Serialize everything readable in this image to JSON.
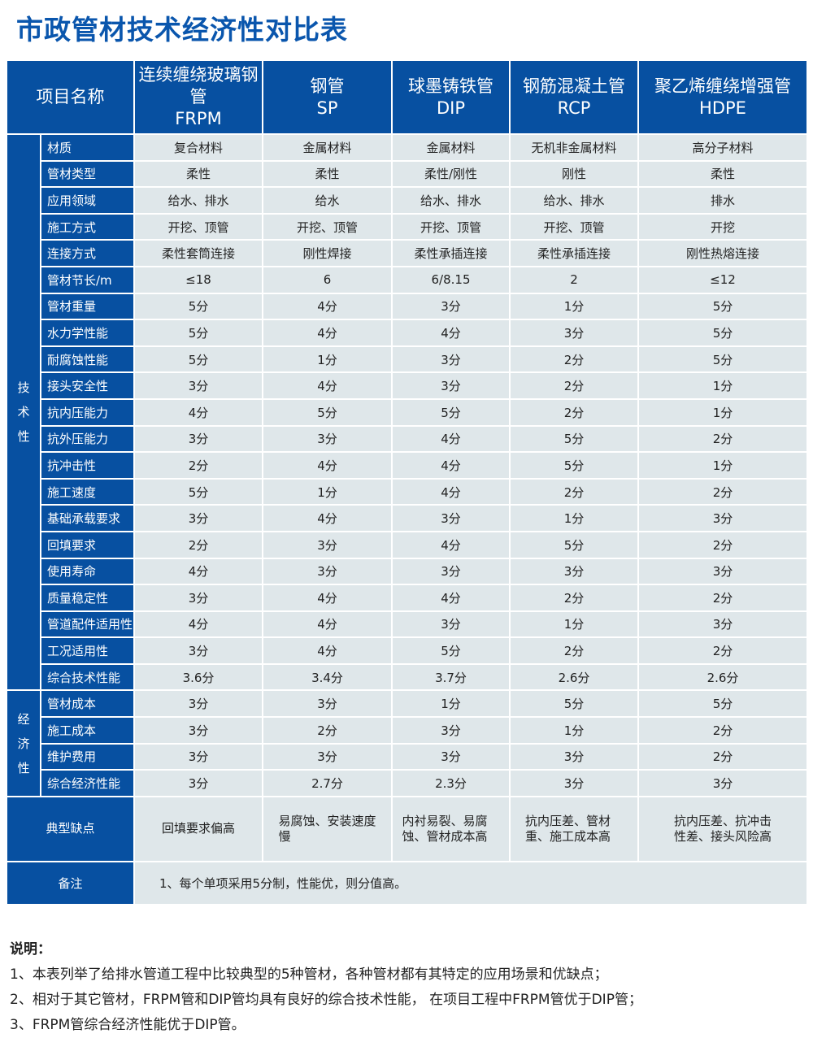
{
  "title": "市政管材技术经济性对比表",
  "header": {
    "item": "项目名称",
    "columns": [
      {
        "cn": "连续缠绕玻璃钢管",
        "en": "FRPM"
      },
      {
        "cn": "钢管",
        "en": "SP"
      },
      {
        "cn": "球墨铸铁管",
        "en": "DIP"
      },
      {
        "cn": "钢筋混凝土管",
        "en": "RCP"
      },
      {
        "cn": "聚乙烯缠绕增强管",
        "en": "HDPE"
      }
    ]
  },
  "groups": [
    {
      "label": "技术性",
      "rows": [
        {
          "name": "材质",
          "values": [
            "复合材料",
            "金属材料",
            "金属材料",
            "无机非金属材料",
            "高分子材料"
          ]
        },
        {
          "name": "管材类型",
          "values": [
            "柔性",
            "柔性",
            "柔性/刚性",
            "刚性",
            "柔性"
          ]
        },
        {
          "name": "应用领域",
          "values": [
            "给水、排水",
            "给水",
            "给水、排水",
            "给水、排水",
            "排水"
          ]
        },
        {
          "name": "施工方式",
          "values": [
            "开挖、顶管",
            "开挖、顶管",
            "开挖、顶管",
            "开挖、顶管",
            "开挖"
          ]
        },
        {
          "name": "连接方式",
          "values": [
            "柔性套筒连接",
            "刚性焊接",
            "柔性承插连接",
            "柔性承插连接",
            "刚性热熔连接"
          ]
        },
        {
          "name": "管材节长/m",
          "values": [
            "≤18",
            "6",
            "6/8.15",
            "2",
            "≤12"
          ]
        },
        {
          "name": "管材重量",
          "values": [
            "5分",
            "4分",
            "3分",
            "1分",
            "5分"
          ]
        },
        {
          "name": "水力学性能",
          "values": [
            "5分",
            "4分",
            "4分",
            "3分",
            "5分"
          ]
        },
        {
          "name": "耐腐蚀性能",
          "values": [
            "5分",
            "1分",
            "3分",
            "2分",
            "5分"
          ]
        },
        {
          "name": "接头安全性",
          "values": [
            "3分",
            "4分",
            "3分",
            "2分",
            "1分"
          ]
        },
        {
          "name": "抗内压能力",
          "values": [
            "4分",
            "5分",
            "5分",
            "2分",
            "1分"
          ]
        },
        {
          "name": "抗外压能力",
          "values": [
            "3分",
            "3分",
            "4分",
            "5分",
            "2分"
          ]
        },
        {
          "name": "抗冲击性",
          "values": [
            "2分",
            "4分",
            "4分",
            "5分",
            "1分"
          ]
        },
        {
          "name": "施工速度",
          "values": [
            "5分",
            "1分",
            "4分",
            "2分",
            "2分"
          ]
        },
        {
          "name": "基础承载要求",
          "values": [
            "3分",
            "4分",
            "3分",
            "1分",
            "3分"
          ]
        },
        {
          "name": "回填要求",
          "values": [
            "2分",
            "3分",
            "4分",
            "5分",
            "2分"
          ]
        },
        {
          "name": "使用寿命",
          "values": [
            "4分",
            "3分",
            "3分",
            "3分",
            "3分"
          ]
        },
        {
          "name": "质量稳定性",
          "values": [
            "3分",
            "4分",
            "4分",
            "2分",
            "2分"
          ]
        },
        {
          "name": "管道配件适用性",
          "values": [
            "4分",
            "4分",
            "3分",
            "1分",
            "3分"
          ]
        },
        {
          "name": "工况适用性",
          "values": [
            "3分",
            "4分",
            "5分",
            "2分",
            "2分"
          ]
        },
        {
          "name": "综合技术性能",
          "values": [
            "3.6分",
            "3.4分",
            "3.7分",
            "2.6分",
            "2.6分"
          ]
        }
      ]
    },
    {
      "label": "经济性",
      "rows": [
        {
          "name": "管材成本",
          "values": [
            "3分",
            "3分",
            "1分",
            "5分",
            "5分"
          ]
        },
        {
          "name": "施工成本",
          "values": [
            "3分",
            "2分",
            "3分",
            "1分",
            "2分"
          ]
        },
        {
          "name": "维护费用",
          "values": [
            "3分",
            "3分",
            "3分",
            "3分",
            "2分"
          ]
        },
        {
          "name": "综合经济性能",
          "values": [
            "3分",
            "2.7分",
            "2.3分",
            "3分",
            "3分"
          ]
        }
      ]
    }
  ],
  "defects": {
    "label": "典型缺点",
    "values": [
      "回填要求偏高",
      "易腐蚀、安装速度慢",
      "内衬易裂、易腐蚀、管材成本高",
      "抗内压差、管材重、施工成本高",
      "抗内压差、抗冲击性差、接头风险高"
    ]
  },
  "remark": {
    "label": "备注",
    "text": "1、每个单项采用5分制，性能优，则分值高。"
  },
  "notes": {
    "heading": "说明：",
    "items": [
      "1、本表列举了给排水管道工程中比较典型的5种管材，各种管材都有其特定的应用场景和优缺点；",
      "2、相对于其它管材，FRPM管和DIP管均具有良好的综合技术性能， 在项目工程中FRPM管优于DIP管；",
      "3、FRPM管综合经济性能优于DIP管。"
    ]
  },
  "colors": {
    "header_blue": "#0750a1",
    "cell_bg": "#dfe7ea",
    "title": "#0a56ad"
  }
}
